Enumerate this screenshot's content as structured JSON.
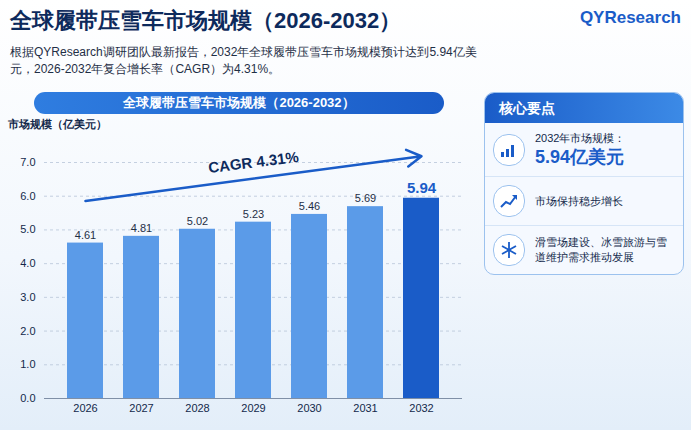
{
  "chart_data": {
    "type": "bar",
    "title": "全球履带压雪车市场规模（2026-2032）",
    "subtitle": "根据QYResearch调研团队最新报告，2032年全球履带压雪车市场规模预计达到5.94亿美元，2026-2032年复合增长率（CAGR）为4.31%。",
    "inner_title": "全球履带压雪车市场规模（2026-2032）",
    "y_label": "市场规模（亿美元）",
    "annotations": [
      {
        "text": "CAGR 4.31%"
      }
    ],
    "categories": [
      "2026",
      "2027",
      "2028",
      "2029",
      "2030",
      "2031",
      "2032"
    ],
    "values": [
      4.61,
      4.81,
      5.02,
      5.23,
      5.46,
      5.69,
      5.94
    ],
    "colors": [
      "#5b9be8",
      "#5b9be8",
      "#5b9be8",
      "#5b9be8",
      "#5b9be8",
      "#5b9be8",
      "#1a5cc8"
    ],
    "ylim": [
      0,
      7
    ],
    "yticks": [
      {
        "value": 0,
        "label": "0.0"
      },
      {
        "value": 1,
        "label": "1.0"
      },
      {
        "value": 2,
        "label": "2.0"
      },
      {
        "value": 3,
        "label": "3.0"
      },
      {
        "value": 4,
        "label": "4.0"
      },
      {
        "value": 5,
        "label": "5.0"
      },
      {
        "value": 6,
        "label": "6.0"
      },
      {
        "value": 7,
        "label": "7.0"
      }
    ],
    "grid": true,
    "data_labels": true
  },
  "logo": "QYResearch",
  "side_panel": {
    "title": "核心要点",
    "items": [
      {
        "label": "2032年市场规模：",
        "value_text": "5.94亿美元"
      },
      {
        "label": "市场保持稳步增长"
      },
      {
        "label": "滑雪场建设、冰雪旅游与雪道维护需求推动发展"
      }
    ]
  }
}
